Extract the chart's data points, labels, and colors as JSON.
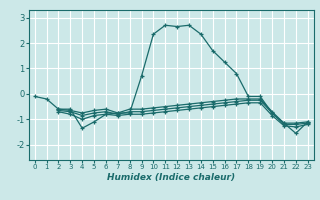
{
  "title": "",
  "xlabel": "Humidex (Indice chaleur)",
  "ylabel": "",
  "background_color": "#cce8e8",
  "grid_color": "#ffffff",
  "line_color": "#1a6b6b",
  "xlim": [
    -0.5,
    23.5
  ],
  "ylim": [
    -2.6,
    3.3
  ],
  "yticks": [
    -2,
    -1,
    0,
    1,
    2,
    3
  ],
  "xticks": [
    0,
    1,
    2,
    3,
    4,
    5,
    6,
    7,
    8,
    9,
    10,
    11,
    12,
    13,
    14,
    15,
    16,
    17,
    18,
    19,
    20,
    21,
    22,
    23
  ],
  "series": [
    {
      "x": [
        0,
        1,
        2,
        3,
        4,
        5,
        6,
        7,
        8,
        9,
        10,
        11,
        12,
        13,
        14,
        15,
        16,
        17,
        18,
        19,
        20,
        21,
        22,
        23
      ],
      "y": [
        -0.1,
        -0.2,
        -0.6,
        -0.6,
        -1.35,
        -1.1,
        -0.8,
        -0.75,
        -0.75,
        0.7,
        2.35,
        2.7,
        2.65,
        2.7,
        2.35,
        1.7,
        1.25,
        0.8,
        -0.1,
        -0.1,
        -0.75,
        -1.15,
        -1.55,
        -1.1
      ]
    },
    {
      "x": [
        2,
        3,
        4,
        5,
        6,
        7,
        8,
        9,
        10,
        11,
        12,
        13,
        14,
        15,
        16,
        17,
        18,
        19,
        20,
        21,
        22,
        23
      ],
      "y": [
        -0.6,
        -0.65,
        -0.75,
        -0.65,
        -0.6,
        -0.75,
        -0.6,
        -0.6,
        -0.55,
        -0.5,
        -0.45,
        -0.4,
        -0.35,
        -0.3,
        -0.25,
        -0.2,
        -0.2,
        -0.2,
        -0.7,
        -1.15,
        -1.15,
        -1.1
      ]
    },
    {
      "x": [
        2,
        3,
        4,
        5,
        6,
        7,
        8,
        9,
        10,
        11,
        12,
        13,
        14,
        15,
        16,
        17,
        18,
        19,
        20,
        21,
        22,
        23
      ],
      "y": [
        -0.65,
        -0.7,
        -0.85,
        -0.75,
        -0.7,
        -0.8,
        -0.7,
        -0.7,
        -0.65,
        -0.6,
        -0.55,
        -0.5,
        -0.45,
        -0.4,
        -0.35,
        -0.3,
        -0.25,
        -0.25,
        -0.75,
        -1.2,
        -1.2,
        -1.15
      ]
    },
    {
      "x": [
        2,
        3,
        4,
        5,
        6,
        7,
        8,
        9,
        10,
        11,
        12,
        13,
        14,
        15,
        16,
        17,
        18,
        19,
        20,
        21,
        22,
        23
      ],
      "y": [
        -0.7,
        -0.8,
        -1.0,
        -0.85,
        -0.8,
        -0.85,
        -0.8,
        -0.8,
        -0.75,
        -0.7,
        -0.65,
        -0.6,
        -0.55,
        -0.5,
        -0.45,
        -0.4,
        -0.35,
        -0.35,
        -0.85,
        -1.25,
        -1.3,
        -1.2
      ]
    }
  ]
}
